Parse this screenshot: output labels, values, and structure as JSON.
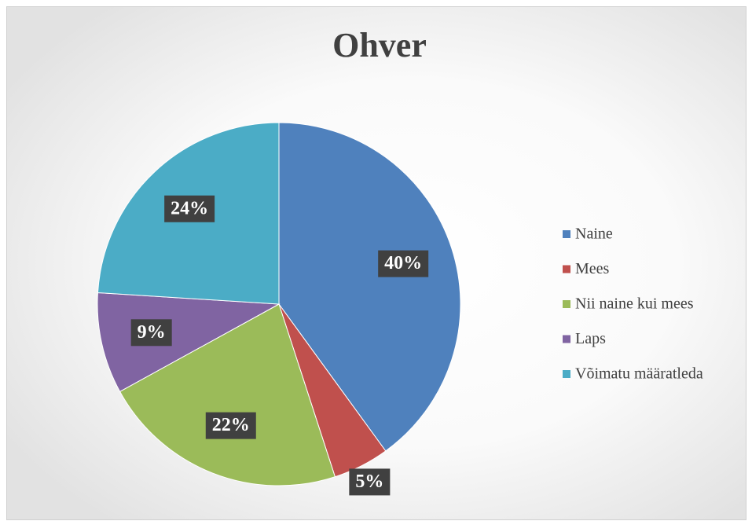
{
  "chart_data": {
    "type": "pie",
    "title": "Ohver",
    "categories": [
      "Naine",
      "Mees",
      "Nii naine kui mees",
      "Laps",
      "Võimatu määratleda"
    ],
    "values": [
      40,
      5,
      22,
      9,
      24
    ],
    "value_labels": [
      "40%",
      "5%",
      "22%",
      "9%",
      "24%"
    ],
    "colors": [
      "#4f81bd",
      "#c0504d",
      "#9bbb59",
      "#8064a2",
      "#4bacc6"
    ],
    "legend": "right"
  }
}
